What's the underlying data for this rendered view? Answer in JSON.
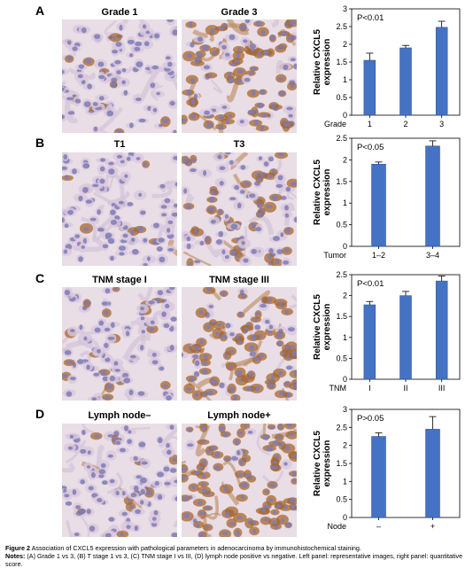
{
  "figure": {
    "caption_label": "Figure 2",
    "caption_text": "Association of CXCL5 expression with pathological parameters in adenocarcinoma by immunohistochemical staining.",
    "notes_label": "Notes:",
    "notes_text": "(A) Grade 1 vs 3, (B) T stage 1 vs 3, (C) TNM stage I vs III, (D) lymph node positive vs negative. Left panel: representative images, right panel: quantitative score."
  },
  "panels": [
    {
      "letter": "A",
      "img_left_label": "Grade 1",
      "img_right_label": "Grade 3",
      "img_left_stain": "low",
      "img_right_stain": "high"
    },
    {
      "letter": "B",
      "img_left_label": "T1",
      "img_right_label": "T3",
      "img_left_stain": "low",
      "img_right_stain": "medium"
    },
    {
      "letter": "C",
      "img_left_label": "TNM stage I",
      "img_right_label": "TNM stage III",
      "img_left_stain": "low",
      "img_right_stain": "high"
    },
    {
      "letter": "D",
      "img_left_label": "Lymph node–",
      "img_right_label": "Lymph node+",
      "img_left_stain": "low",
      "img_right_stain": "very-high"
    }
  ],
  "colors": {
    "bar": "#4472C4",
    "stain_blue": "#7e7bb5",
    "stain_brown": "#a8672a",
    "tissue_bg": "#e9dde6"
  },
  "chart_data": [
    {
      "type": "bar",
      "panel": "A",
      "annotation": "P<0.01",
      "ylabel": "Relative CXCL5 expression",
      "xlabel": "Grade",
      "categories": [
        "1",
        "2",
        "3"
      ],
      "values": [
        1.55,
        1.9,
        2.48
      ],
      "errors": [
        0.2,
        0.07,
        0.17
      ],
      "ylim": [
        0,
        3
      ],
      "yticks": [
        0,
        0.5,
        1,
        1.5,
        2,
        2.5,
        3
      ],
      "ytick_labels": [
        "0",
        "0.5",
        "1",
        "1.5",
        "2",
        "2.5",
        "3"
      ]
    },
    {
      "type": "bar",
      "panel": "B",
      "annotation": "P<0.05",
      "ylabel": "Relative CXCL5 expression",
      "xlabel": "Tumor",
      "categories": [
        "1–2",
        "3–4"
      ],
      "values": [
        1.9,
        2.32
      ],
      "errors": [
        0.05,
        0.12
      ],
      "ylim": [
        0,
        2.5
      ],
      "yticks": [
        0,
        0.5,
        1,
        1.5,
        2,
        2.5
      ],
      "ytick_labels": [
        "0",
        "0.5",
        "1",
        "1.5",
        "2",
        "2.5"
      ]
    },
    {
      "type": "bar",
      "panel": "C",
      "annotation": "P<0.01",
      "ylabel": "Relative CXCL5 expression",
      "xlabel": "TNM",
      "categories": [
        "I",
        "II",
        "III"
      ],
      "values": [
        1.78,
        2.0,
        2.35
      ],
      "errors": [
        0.08,
        0.1,
        0.12
      ],
      "ylim": [
        0,
        2.5
      ],
      "yticks": [
        0,
        0.5,
        1,
        1.5,
        2,
        2.5
      ],
      "ytick_labels": [
        "0",
        "0.5",
        "1",
        "1.5",
        "2",
        "2.5"
      ]
    },
    {
      "type": "bar",
      "panel": "D",
      "annotation": "P>0.05",
      "ylabel": "Relative CXCL5 expression",
      "xlabel": "Node",
      "categories": [
        "–",
        "+"
      ],
      "values": [
        2.25,
        2.45
      ],
      "errors": [
        0.1,
        0.35
      ],
      "ylim": [
        0,
        3
      ],
      "yticks": [
        0,
        0.5,
        1,
        1.5,
        2,
        2.5,
        3
      ],
      "ytick_labels": [
        "0",
        "0.5",
        "1",
        "1.5",
        "2",
        "2.5",
        "3"
      ]
    }
  ]
}
